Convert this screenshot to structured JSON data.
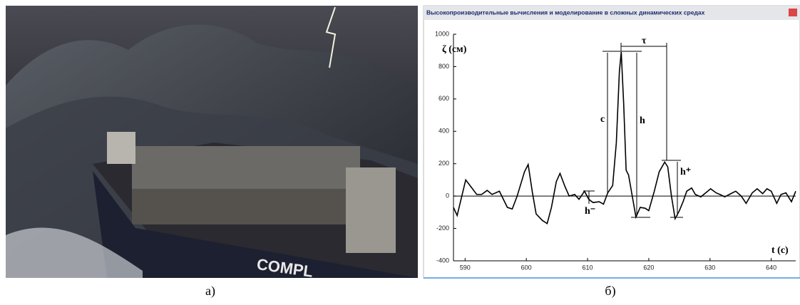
{
  "captions": {
    "left": "а)",
    "right": "б)"
  },
  "window_title": "Высокопроизводительные вычисления и моделирование в сложных динамических средах",
  "chart_data": {
    "type": "line",
    "y_axis_label": "ζ (см)",
    "x_axis_label": "t (с)",
    "annotations": {
      "c": "c",
      "h": "h",
      "tau": "τ",
      "h_plus": "h⁺",
      "h_minus": "h⁻"
    },
    "color": "#000000",
    "xlim": [
      588.1,
      644.0
    ],
    "xticks": [
      590,
      600,
      610,
      620,
      630,
      640
    ],
    "ylim": [
      -400,
      1000
    ],
    "yticks": [
      -400,
      -200,
      0,
      200,
      400,
      600,
      800,
      1000
    ],
    "x": [
      588.1,
      588.7,
      590.1,
      590.9,
      591.9,
      592.7,
      593.6,
      594.4,
      595.6,
      596.9,
      597.7,
      598.5,
      599.7,
      600.3,
      601.0,
      601.6,
      602.6,
      603.4,
      604.1,
      604.9,
      605.5,
      606.3,
      607.0,
      607.9,
      608.6,
      609.5,
      610.2,
      610.9,
      611.9,
      612.6,
      613.3,
      614.1,
      614.7,
      615.2,
      615.5,
      615.9,
      616.3,
      616.7,
      617.3,
      617.9,
      618.6,
      619.4,
      620.0,
      620.9,
      621.7,
      622.6,
      623.1,
      623.7,
      624.3,
      625.0,
      625.6,
      626.2,
      627.0,
      627.6,
      628.5,
      629.3,
      630.1,
      631.0,
      631.9,
      632.4,
      633.4,
      634.2,
      635.1,
      635.9,
      636.9,
      637.7,
      638.6,
      639.3,
      640.0,
      640.9,
      641.6,
      642.4,
      643.3,
      644.0
    ],
    "values": [
      -70,
      -120,
      100,
      60,
      10,
      10,
      35,
      10,
      30,
      -70,
      -80,
      0,
      150,
      195,
      20,
      -110,
      -150,
      -170,
      -70,
      90,
      140,
      60,
      0,
      10,
      -20,
      30,
      -20,
      -40,
      -35,
      -50,
      20,
      65,
      330,
      770,
      890,
      570,
      160,
      130,
      0,
      -130,
      -70,
      -75,
      -90,
      30,
      150,
      210,
      180,
      0,
      -140,
      -90,
      -35,
      30,
      50,
      10,
      -5,
      20,
      45,
      20,
      5,
      -5,
      15,
      30,
      0,
      -45,
      20,
      45,
      15,
      45,
      30,
      -45,
      10,
      20,
      -35,
      30
    ]
  }
}
